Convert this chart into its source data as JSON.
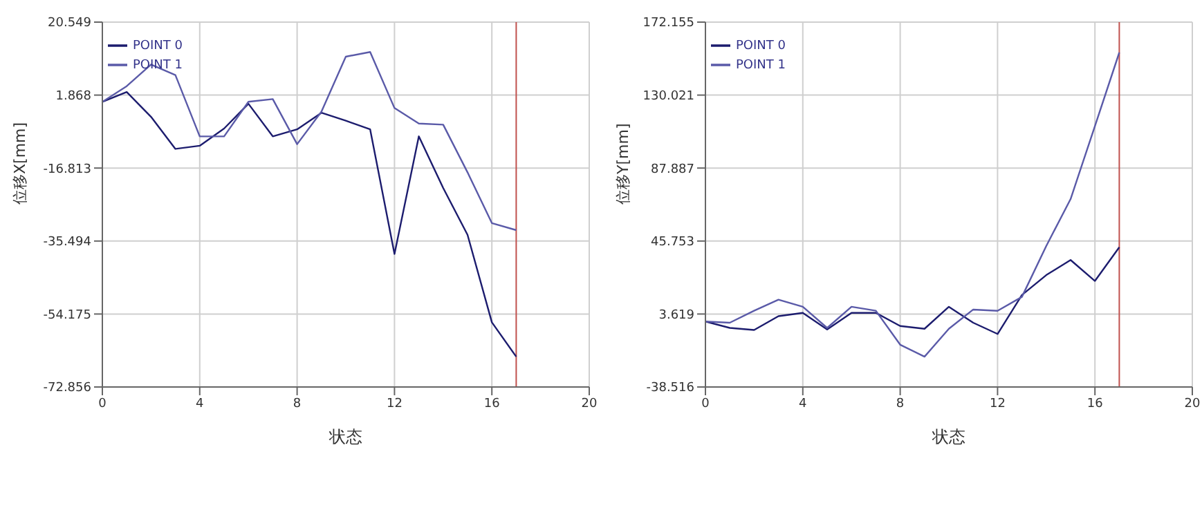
{
  "chart_data": [
    {
      "type": "line",
      "xlabel": "状态",
      "ylabel": "位移X[mm]",
      "x": [
        0,
        1,
        2,
        3,
        4,
        5,
        6,
        7,
        8,
        9,
        10,
        11,
        12,
        13,
        14,
        15,
        16,
        17
      ],
      "xlim": [
        0,
        20
      ],
      "xticks": [
        0,
        4,
        8,
        12,
        16,
        20
      ],
      "ylim": [
        -72.856,
        20.549
      ],
      "yticks": [
        -72.856,
        -54.175,
        -35.494,
        -16.813,
        1.868,
        20.549
      ],
      "grid": true,
      "legend": "top left",
      "marker": "none",
      "line_style": "solid",
      "series": [
        {
          "name": "POINT 0",
          "color": "#1c1c6e",
          "values": [
            0.15,
            2.65,
            -3.7,
            -11.9,
            -11.1,
            -6.7,
            -0.35,
            -8.7,
            -6.9,
            -2.65,
            -4.7,
            -6.9,
            -38.8,
            -8.7,
            -21.9,
            -33.9,
            -56.3,
            -65.1
          ]
        },
        {
          "name": "POINT 1",
          "color": "#5a5aa8",
          "values": [
            0.15,
            4.16,
            9.7,
            7.0,
            -8.7,
            -8.7,
            0.15,
            0.85,
            -10.7,
            -2.35,
            11.7,
            12.9,
            -1.45,
            -5.4,
            -5.7,
            -17.9,
            -30.9,
            -32.7
          ]
        }
      ],
      "ref_lines": [
        {
          "axis": "x",
          "value": 17,
          "color": "#c0504d"
        }
      ]
    },
    {
      "type": "line",
      "xlabel": "状态",
      "ylabel": "位移Y[mm]",
      "x": [
        0,
        1,
        2,
        3,
        4,
        5,
        6,
        7,
        8,
        9,
        10,
        11,
        12,
        13,
        14,
        15,
        16,
        17
      ],
      "xlim": [
        0,
        20
      ],
      "xticks": [
        0,
        4,
        8,
        12,
        16,
        20
      ],
      "ylim": [
        -38.516,
        172.155
      ],
      "yticks": [
        -38.516,
        3.619,
        45.753,
        87.887,
        130.021,
        172.155
      ],
      "grid": true,
      "legend": "top left",
      "marker": "none",
      "line_style": "solid",
      "series": [
        {
          "name": "POINT 0",
          "color": "#1c1c6e",
          "values": [
            -0.7,
            -4.4,
            -5.6,
            2.4,
            4.3,
            -5.3,
            4.3,
            4.3,
            -3.3,
            -4.9,
            7.8,
            -1.4,
            -7.9,
            14.6,
            26.1,
            34.8,
            22.7,
            42.2
          ]
        },
        {
          "name": "POINT 1",
          "color": "#5a5aa8",
          "values": [
            -0.7,
            -1.4,
            5.5,
            11.9,
            7.8,
            -4.4,
            7.8,
            5.5,
            -14.1,
            -21.0,
            -4.9,
            6.2,
            5.5,
            13.5,
            42.9,
            70,
            112.2,
            154.6
          ]
        }
      ],
      "ref_lines": [
        {
          "axis": "x",
          "value": 17,
          "color": "#c0504d"
        }
      ]
    }
  ]
}
